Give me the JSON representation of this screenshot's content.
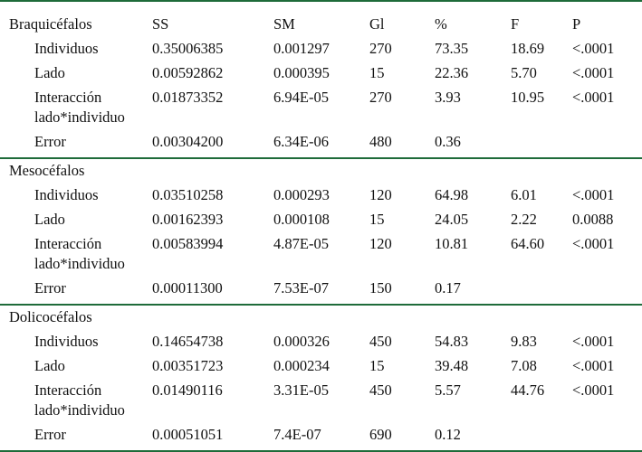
{
  "table": {
    "columns": [
      "SS",
      "SM",
      "Gl",
      "%",
      "F",
      "P"
    ],
    "groups": [
      {
        "name": "Braquicéfalos",
        "rows": [
          [
            "Individuos",
            "0.35006385",
            "0.001297",
            "270",
            "73.35",
            "18.69",
            "<.0001"
          ],
          [
            "Lado",
            "0.00592862",
            "0.000395",
            "15",
            "22.36",
            "5.70",
            "<.0001"
          ],
          [
            "Interacción lado*individuo",
            "0.01873352",
            "6.94E-05",
            "270",
            "3.93",
            "10.95",
            "<.0001"
          ],
          [
            "Error",
            "0.00304200",
            "6.34E-06",
            "480",
            "0.36"
          ]
        ]
      },
      {
        "name": "Mesocéfalos",
        "rows": [
          [
            "Individuos",
            "0.03510258",
            "0.000293",
            "120",
            "64.98",
            "6.01",
            "<.0001"
          ],
          [
            "Lado",
            "0.00162393",
            "0.000108",
            "15",
            "24.05",
            "2.22",
            "0.0088"
          ],
          [
            "Interacción lado*individuo",
            "0.00583994",
            "4.87E-05",
            "120",
            "10.81",
            "64.60",
            "<.0001"
          ],
          [
            "Error",
            "0.00011300",
            "7.53E-07",
            "150",
            "0.17"
          ]
        ]
      },
      {
        "name": "Dolicocéfalos",
        "rows": [
          [
            "Individuos",
            "0.14654738",
            "0.000326",
            "450",
            "54.83",
            "9.83",
            "<.0001"
          ],
          [
            "Lado",
            "0.00351723",
            "0.000234",
            "15",
            "39.48",
            "7.08",
            "<.0001"
          ],
          [
            "Interacción lado*individuo",
            "0.01490116",
            "3.31E-05",
            "450",
            "5.57",
            "44.76",
            "<.0001"
          ],
          [
            "Error",
            "0.00051051",
            "7.4E-07",
            "690",
            "0.12"
          ]
        ]
      }
    ]
  }
}
